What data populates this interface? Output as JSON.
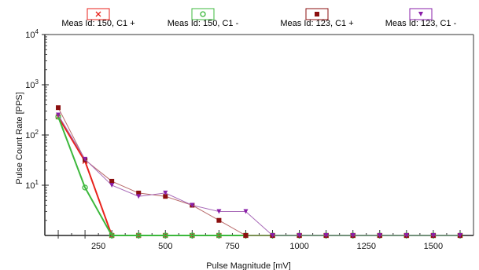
{
  "chart_data": {
    "type": "line",
    "xlabel": "Pulse Magnitude [mV]",
    "ylabel": "Pulse Count Rate [PPS]",
    "xlim": [
      50,
      1650
    ],
    "ylim_log10": [
      0,
      4
    ],
    "y_scale": "log",
    "x_ticks": [
      250,
      500,
      750,
      1000,
      1250,
      1500
    ],
    "y_ticks": [
      {
        "value": 10000,
        "label_base": "10",
        "label_exp": "4"
      },
      {
        "value": 1000,
        "label_base": "10",
        "label_exp": "3"
      },
      {
        "value": 100,
        "label_base": "10",
        "label_exp": "2"
      },
      {
        "value": 10,
        "label_base": "10",
        "label_exp": "1"
      }
    ],
    "grid": false,
    "legend_position": "top",
    "series": [
      {
        "name": "Meas Id: 150, C1 +",
        "color": "#e8221b",
        "marker": "x",
        "marker_color": "#e8221b",
        "line_width": 2,
        "x": [
          100,
          200,
          300,
          400,
          500,
          600,
          700,
          800,
          900,
          1000,
          1100,
          1200,
          1300,
          1400,
          1500,
          1600
        ],
        "y": [
          230,
          30,
          1,
          1,
          1,
          1,
          1,
          1,
          1,
          1,
          1,
          1,
          1,
          1,
          1,
          1
        ]
      },
      {
        "name": "Meas Id: 150, C1 -",
        "color": "#3cb83c",
        "marker": "o",
        "marker_color": "#3cb83c",
        "line_width": 2,
        "x": [
          100,
          200,
          300,
          400,
          500,
          600,
          700,
          800,
          900,
          1000,
          1100,
          1200,
          1300,
          1400,
          1500,
          1600
        ],
        "y": [
          230,
          9,
          1,
          1,
          1,
          1,
          1,
          1,
          1,
          1,
          1,
          1,
          1,
          1,
          1,
          1
        ]
      },
      {
        "name": "Meas Id: 123, C1 +",
        "color": "#b86a6a",
        "marker": "square",
        "marker_color": "#8b0f0f",
        "line_width": 1,
        "x": [
          100,
          200,
          300,
          400,
          500,
          600,
          700,
          800,
          900,
          1000,
          1100,
          1200,
          1300,
          1400,
          1500,
          1600
        ],
        "y": [
          350,
          32,
          12,
          7,
          6,
          4,
          2,
          1,
          1,
          1,
          1,
          1,
          1,
          1,
          1,
          1
        ]
      },
      {
        "name": "Meas Id: 123, C1 -",
        "color": "#a86ab8",
        "marker": "triangle-down",
        "marker_color": "#8a1fa8",
        "line_width": 1,
        "x": [
          100,
          200,
          300,
          400,
          500,
          600,
          700,
          800,
          900,
          1000,
          1100,
          1200,
          1300,
          1400,
          1500,
          1600
        ],
        "y": [
          250,
          33,
          10,
          6,
          7,
          4,
          3,
          3,
          1,
          1,
          1,
          1,
          1,
          1,
          1,
          1
        ]
      }
    ]
  }
}
